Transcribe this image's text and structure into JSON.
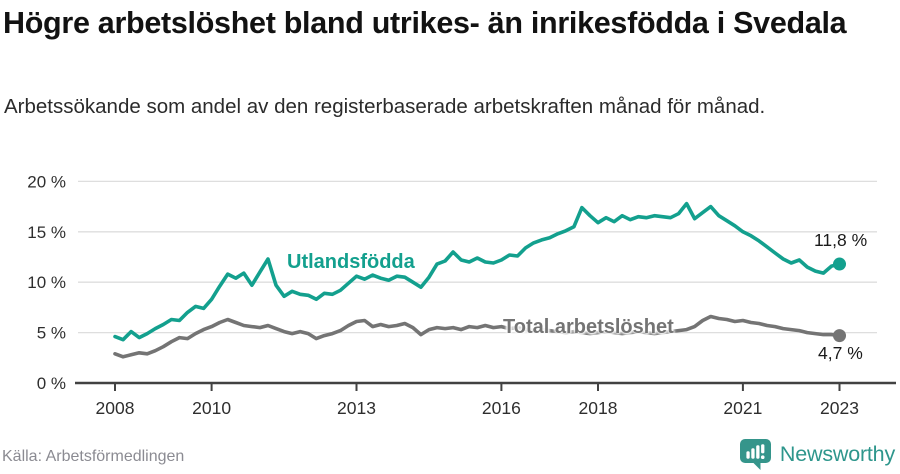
{
  "header": {
    "title": "Högre arbetslöshet bland utrikes- än inrikesfödda i Svedala",
    "subtitle": "Arbetssökande som andel av den registerbaserade arbetskraften månad för månad."
  },
  "footer": {
    "source": "Källa: Arbetsförmedlingen",
    "brand": "Newsworthy",
    "brand_icon": "newsworthy-bars-icon"
  },
  "colors": {
    "foreign_born": "#13a08e",
    "total": "#747474",
    "grid": "#dedede",
    "axis": "#424242",
    "tick_text": "#2e2e2e",
    "annotation": "#1a1a1a",
    "source_text": "#8b8b92",
    "brand_teal": "#2e968c"
  },
  "chart_data": {
    "type": "line",
    "title": "Högre arbetslöshet bland utrikes- än inrikesfödda i Svedala",
    "subtitle": "Arbetssökande som andel av den registerbaserade arbetskraften månad för månad.",
    "xlabel": "",
    "ylabel": "",
    "x_start": 2008.0,
    "x_step_years": 0.16667,
    "x_ticks": [
      2008,
      2010,
      2013,
      2016,
      2018,
      2021,
      2023
    ],
    "x_tick_labels": [
      "2008",
      "2010",
      "2013",
      "2016",
      "2018",
      "2021",
      "2023"
    ],
    "y_ticks": [
      0,
      5,
      10,
      15,
      20
    ],
    "y_tick_labels": [
      "0 %",
      "5 %",
      "10 %",
      "15 %",
      "20 %"
    ],
    "ylim": [
      0,
      20.5
    ],
    "xlim": [
      2007.2,
      2023.9
    ],
    "grid": "horizontal",
    "legend_position": "inline-labels",
    "series": [
      {
        "name": "Utlandsfödda",
        "color_key": "foreign_born",
        "end_label": "11,8 %",
        "end_value": 11.8,
        "values": [
          4.6,
          4.3,
          5.1,
          4.5,
          4.9,
          5.4,
          5.8,
          6.3,
          6.2,
          7.0,
          7.6,
          7.4,
          8.3,
          9.6,
          10.8,
          10.4,
          10.9,
          9.7,
          11.0,
          12.3,
          9.7,
          8.6,
          9.1,
          8.8,
          8.7,
          8.3,
          8.9,
          8.8,
          9.2,
          9.9,
          10.6,
          10.3,
          10.7,
          10.4,
          10.2,
          10.6,
          10.5,
          10.0,
          9.5,
          10.5,
          11.8,
          12.1,
          13.0,
          12.2,
          12.0,
          12.4,
          12.0,
          11.9,
          12.2,
          12.7,
          12.6,
          13.4,
          13.9,
          14.2,
          14.4,
          14.8,
          15.1,
          15.5,
          17.4,
          16.6,
          15.9,
          16.4,
          16.0,
          16.6,
          16.2,
          16.5,
          16.4,
          16.6,
          16.5,
          16.4,
          16.8,
          17.8,
          16.3,
          16.9,
          17.5,
          16.6,
          16.1,
          15.6,
          15.0,
          14.6,
          14.1,
          13.5,
          12.9,
          12.3,
          11.9,
          12.2,
          11.5,
          11.1,
          10.9,
          11.6,
          11.8
        ]
      },
      {
        "name": "Total arbetslöshet",
        "color_key": "total",
        "end_label": "4,7 %",
        "end_value": 4.7,
        "values": [
          2.9,
          2.6,
          2.8,
          3.0,
          2.9,
          3.2,
          3.6,
          4.1,
          4.5,
          4.4,
          4.9,
          5.3,
          5.6,
          6.0,
          6.3,
          6.0,
          5.7,
          5.6,
          5.5,
          5.7,
          5.4,
          5.1,
          4.9,
          5.1,
          4.9,
          4.4,
          4.7,
          4.9,
          5.2,
          5.7,
          6.1,
          6.2,
          5.6,
          5.8,
          5.6,
          5.7,
          5.9,
          5.5,
          4.8,
          5.3,
          5.5,
          5.4,
          5.5,
          5.3,
          5.6,
          5.5,
          5.7,
          5.5,
          5.6,
          5.4,
          5.5,
          5.3,
          5.2,
          5.3,
          5.2,
          5.1,
          5.0,
          5.1,
          5.0,
          4.9,
          5.0,
          5.1,
          5.0,
          4.9,
          5.0,
          5.1,
          5.0,
          4.9,
          5.0,
          5.1,
          5.2,
          5.3,
          5.6,
          6.2,
          6.6,
          6.4,
          6.3,
          6.1,
          6.2,
          6.0,
          5.9,
          5.7,
          5.6,
          5.4,
          5.3,
          5.2,
          5.0,
          4.9,
          4.8,
          4.8,
          4.7
        ]
      }
    ]
  }
}
